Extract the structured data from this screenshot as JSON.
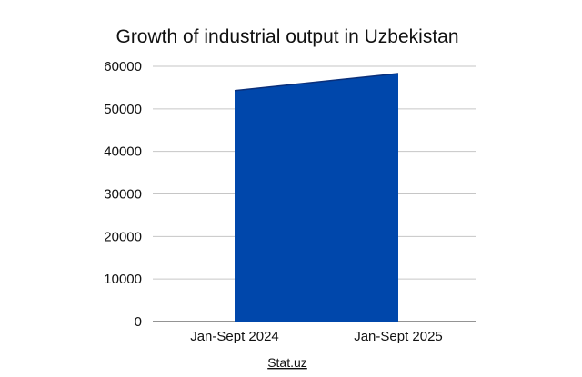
{
  "chart_data": {
    "type": "area",
    "title": "Growth of industrial output in Uzbekistan",
    "categories": [
      "Jan-Sept 2024",
      "Jan-Sept 2025"
    ],
    "values": [
      54300,
      58300
    ],
    "ylim": [
      0,
      60000
    ],
    "yticks": [
      0,
      10000,
      20000,
      30000,
      40000,
      50000,
      60000
    ],
    "ytick_labels": [
      "0",
      "10000",
      "20000",
      "30000",
      "40000",
      "50000",
      "60000"
    ],
    "grid": true,
    "legend": "none",
    "colors": {
      "area": "#0047AB",
      "grid": "#c6c6c6",
      "axis": "#555555"
    }
  },
  "source": {
    "label": "Stat.uz"
  }
}
